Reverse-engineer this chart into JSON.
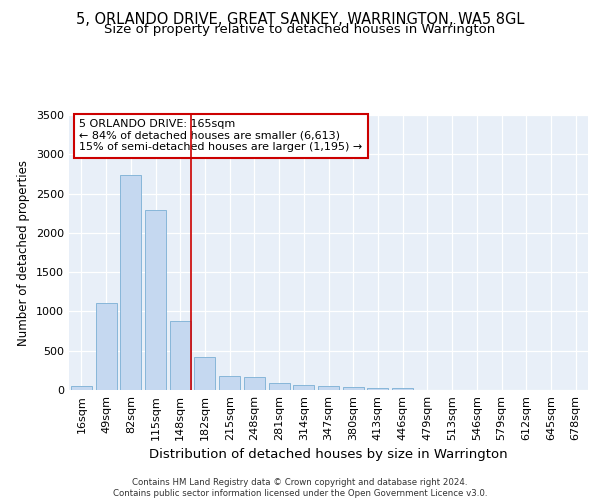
{
  "title": "5, ORLANDO DRIVE, GREAT SANKEY, WARRINGTON, WA5 8GL",
  "subtitle": "Size of property relative to detached houses in Warrington",
  "xlabel": "Distribution of detached houses by size in Warrington",
  "ylabel": "Number of detached properties",
  "categories": [
    "16sqm",
    "49sqm",
    "82sqm",
    "115sqm",
    "148sqm",
    "182sqm",
    "215sqm",
    "248sqm",
    "281sqm",
    "314sqm",
    "347sqm",
    "380sqm",
    "413sqm",
    "446sqm",
    "479sqm",
    "513sqm",
    "546sqm",
    "579sqm",
    "612sqm",
    "645sqm",
    "678sqm"
  ],
  "values": [
    50,
    1110,
    2730,
    2290,
    880,
    425,
    175,
    165,
    90,
    60,
    45,
    35,
    30,
    20,
    0,
    0,
    0,
    0,
    0,
    0,
    0
  ],
  "bar_color": "#c5d8f0",
  "bar_edge_color": "#7bafd4",
  "annotation_text": "5 ORLANDO DRIVE: 165sqm\n← 84% of detached houses are smaller (6,613)\n15% of semi-detached houses are larger (1,195) →",
  "vline_bar_index": 4,
  "ylim": [
    0,
    3500
  ],
  "yticks": [
    0,
    500,
    1000,
    1500,
    2000,
    2500,
    3000,
    3500
  ],
  "title_fontsize": 10.5,
  "subtitle_fontsize": 9.5,
  "xlabel_fontsize": 9.5,
  "ylabel_fontsize": 8.5,
  "tick_fontsize": 8,
  "footer_text": "Contains HM Land Registry data © Crown copyright and database right 2024.\nContains public sector information licensed under the Open Government Licence v3.0.",
  "bg_color": "#e8eff8",
  "grid_color": "#ffffff",
  "annotation_box_facecolor": "#ffffff",
  "annotation_box_edgecolor": "#cc0000",
  "vline_color": "#cc0000"
}
